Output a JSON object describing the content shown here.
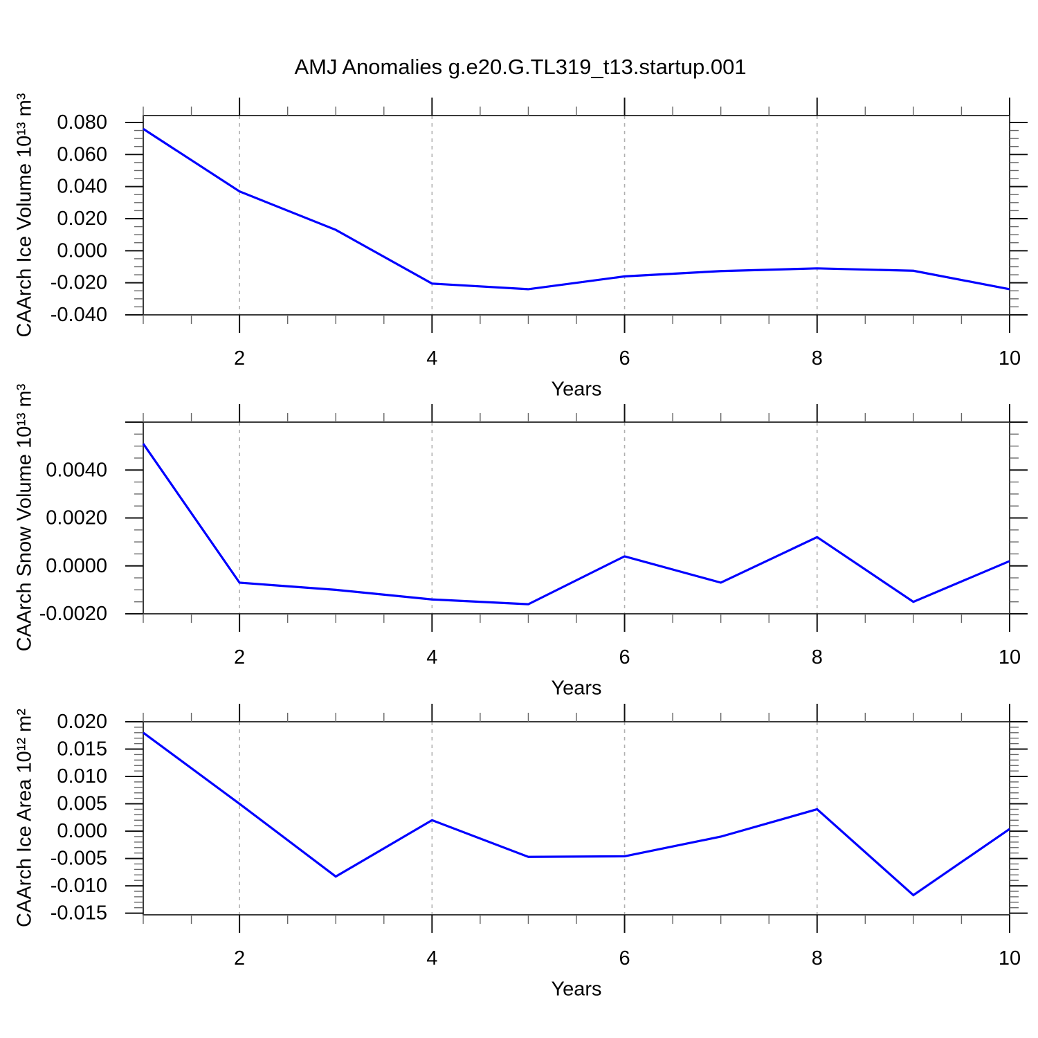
{
  "title": "AMJ Anomalies g.e20.G.TL319_t13.startup.001",
  "chart_data": [
    {
      "type": "line",
      "ylabel": "CAArch Ice Volume 10¹³ m³",
      "xlabel": "Years",
      "x": [
        1,
        2,
        3,
        4,
        5,
        6,
        7,
        8,
        9,
        10
      ],
      "values": [
        0.076,
        0.037,
        0.013,
        -0.0205,
        -0.024,
        -0.016,
        -0.0127,
        -0.011,
        -0.0125,
        -0.024
      ],
      "xlim": [
        1,
        10
      ],
      "ylim": [
        -0.04,
        0.0843
      ],
      "xtick_values": [
        2,
        4,
        6,
        8,
        10
      ],
      "xtick_labels": [
        "2",
        "4",
        "6",
        "8",
        "10"
      ],
      "x_minor_step": 0.5,
      "ytick_values": [
        0.08,
        0.06,
        0.04,
        0.02,
        0.0,
        -0.02,
        -0.04
      ],
      "ytick_labels": [
        "0.080",
        "0.060",
        "0.040",
        "0.020",
        "0.000",
        "-0.020",
        "-0.040"
      ],
      "ytick_values_unlabeled": [],
      "y_minor_step": 0.005,
      "grid_x": [
        2,
        4,
        6,
        8
      ],
      "grid_style": "vertical-dashed",
      "legend": "none",
      "line_color": "#0000ff"
    },
    {
      "type": "line",
      "ylabel": "CAArch Snow Volume 10¹³ m³",
      "xlabel": "Years",
      "x": [
        1,
        2,
        3,
        4,
        5,
        6,
        7,
        8,
        9,
        10
      ],
      "values": [
        0.0051,
        -0.0007,
        -0.001,
        -0.0014,
        -0.0016,
        0.0004,
        -0.0007,
        0.0012,
        -0.0015,
        0.0002
      ],
      "xlim": [
        1,
        10
      ],
      "ylim": [
        -0.002,
        0.006
      ],
      "xtick_values": [
        2,
        4,
        6,
        8,
        10
      ],
      "xtick_labels": [
        "2",
        "4",
        "6",
        "8",
        "10"
      ],
      "x_minor_step": 0.5,
      "ytick_values": [
        0.004,
        0.002,
        0.0,
        -0.002
      ],
      "ytick_labels": [
        "0.0040",
        "0.0020",
        "0.0000",
        "-0.0020"
      ],
      "ytick_values_unlabeled": [
        0.006
      ],
      "y_minor_step": 0.0005,
      "grid_x": [
        2,
        4,
        6,
        8
      ],
      "grid_style": "vertical-dashed",
      "legend": "none",
      "line_color": "#0000ff"
    },
    {
      "type": "line",
      "ylabel": "CAArch Ice Area 10¹² m²",
      "xlabel": "Years",
      "x": [
        1,
        2,
        3,
        4,
        5,
        6,
        7,
        8,
        9,
        10
      ],
      "values": [
        0.018,
        0.005,
        -0.0083,
        0.002,
        -0.0047,
        -0.0046,
        -0.001,
        0.004,
        -0.0117,
        0.0004
      ],
      "xlim": [
        1,
        10
      ],
      "ylim": [
        -0.0153,
        0.02
      ],
      "xtick_values": [
        2,
        4,
        6,
        8,
        10
      ],
      "xtick_labels": [
        "2",
        "4",
        "6",
        "8",
        "10"
      ],
      "x_minor_step": 0.5,
      "ytick_values": [
        0.02,
        0.015,
        0.01,
        0.005,
        0.0,
        -0.005,
        -0.01,
        -0.015
      ],
      "ytick_labels": [
        "0.020",
        "0.015",
        "0.010",
        "0.005",
        "0.000",
        "-0.005",
        "-0.010",
        "-0.015"
      ],
      "ytick_values_unlabeled": [],
      "y_minor_step": 0.001,
      "grid_x": [
        2,
        4,
        6,
        8
      ],
      "grid_style": "vertical-dashed",
      "legend": "none",
      "line_color": "#0000ff"
    }
  ]
}
